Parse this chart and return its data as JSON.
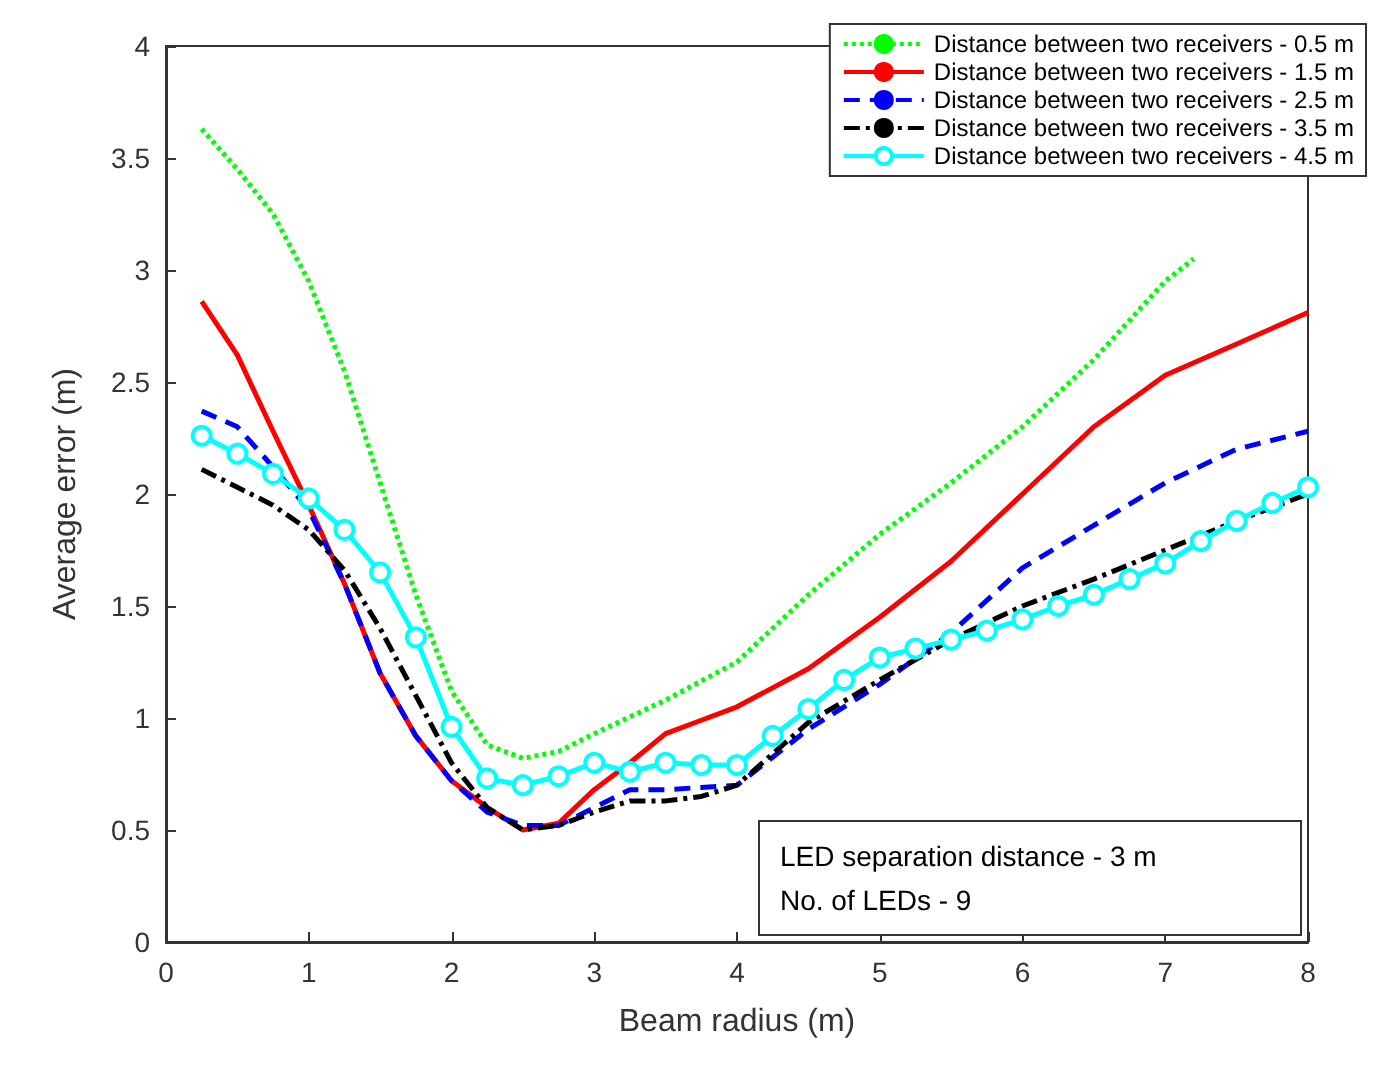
{
  "chart_data": {
    "type": "line",
    "xlabel": "Beam radius (m)",
    "ylabel": "Average error (m)",
    "xlim": [
      0,
      8
    ],
    "xticks": [
      0,
      1,
      2,
      3,
      4,
      5,
      6,
      7,
      8
    ],
    "ylim": [
      0,
      4
    ],
    "yticks": [
      0,
      0.5,
      1,
      1.5,
      2,
      2.5,
      3,
      3.5,
      4
    ],
    "grid": false,
    "legend": "top right",
    "annotations": [
      "LED separation distance - 3 m",
      "No. of LEDs - 9"
    ],
    "series": [
      {
        "name": "Distance between two receivers - 0.5 m",
        "color": "#00ff00",
        "line_style": "dotted",
        "marker": "none",
        "x": [
          0.25,
          0.5,
          0.75,
          1,
          1.25,
          1.5,
          1.75,
          2,
          2.25,
          2.5,
          2.75,
          3,
          3.5,
          4,
          4.5,
          5,
          5.5,
          6,
          6.5,
          7,
          7.2
        ],
        "values": [
          3.63,
          3.45,
          3.25,
          2.95,
          2.55,
          2.05,
          1.55,
          1.12,
          0.88,
          0.82,
          0.85,
          0.93,
          1.08,
          1.25,
          1.55,
          1.82,
          2.05,
          2.3,
          2.6,
          2.95,
          3.05
        ]
      },
      {
        "name": "Distance between two receivers - 1.5 m",
        "color": "#ff0000",
        "line_style": "solid",
        "marker": "none",
        "x": [
          0.25,
          0.5,
          0.75,
          1,
          1.25,
          1.5,
          1.75,
          2,
          2.25,
          2.5,
          2.75,
          3,
          3.25,
          3.5,
          3.75,
          4,
          4.5,
          5,
          5.5,
          6,
          6.5,
          7,
          7.5,
          8
        ],
        "values": [
          2.86,
          2.62,
          2.28,
          1.95,
          1.6,
          1.2,
          0.92,
          0.72,
          0.6,
          0.5,
          0.53,
          0.68,
          0.8,
          0.93,
          0.99,
          1.05,
          1.22,
          1.45,
          1.7,
          2,
          2.3,
          2.53,
          2.67,
          2.81
        ]
      },
      {
        "name": "Distance between two receivers - 2.5 m",
        "color": "#0000ff",
        "line_style": "dashed",
        "marker": "none",
        "x": [
          0.25,
          0.5,
          0.75,
          1,
          1.25,
          1.5,
          1.75,
          2,
          2.25,
          2.5,
          2.75,
          3,
          3.25,
          3.5,
          3.75,
          4,
          4.5,
          5,
          5.5,
          6,
          6.5,
          7,
          7.5,
          8
        ],
        "values": [
          2.37,
          2.3,
          2.12,
          1.93,
          1.6,
          1.2,
          0.92,
          0.72,
          0.58,
          0.52,
          0.52,
          0.6,
          0.68,
          0.68,
          0.69,
          0.7,
          0.95,
          1.15,
          1.38,
          1.67,
          1.86,
          2.05,
          2.2,
          2.28
        ]
      },
      {
        "name": "Distance between two receivers - 3.5 m",
        "color": "#000000",
        "line_style": "dashdot",
        "marker": "none",
        "x": [
          0.25,
          0.5,
          0.75,
          1,
          1.25,
          1.5,
          1.75,
          2,
          2.25,
          2.5,
          2.75,
          3,
          3.25,
          3.5,
          3.75,
          4,
          4.5,
          5,
          5.5,
          6,
          6.5,
          7,
          7.5,
          8
        ],
        "values": [
          2.11,
          2.03,
          1.95,
          1.84,
          1.66,
          1.4,
          1.1,
          0.8,
          0.6,
          0.5,
          0.52,
          0.58,
          0.63,
          0.63,
          0.65,
          0.7,
          0.98,
          1.17,
          1.35,
          1.5,
          1.62,
          1.75,
          1.88,
          2
        ]
      },
      {
        "name": "Distance between two receivers - 4.5 m",
        "color": "#00ffff",
        "line_style": "solid",
        "marker": "circle",
        "x": [
          0.25,
          0.5,
          0.75,
          1,
          1.25,
          1.5,
          1.75,
          2,
          2.25,
          2.5,
          2.75,
          3,
          3.25,
          3.5,
          3.75,
          4,
          4.25,
          4.5,
          4.75,
          5,
          5.25,
          5.5,
          5.75,
          6,
          6.25,
          6.5,
          6.75,
          7,
          7.25,
          7.5,
          7.75,
          8
        ],
        "values": [
          2.26,
          2.18,
          2.09,
          1.98,
          1.84,
          1.65,
          1.36,
          0.96,
          0.73,
          0.7,
          0.74,
          0.8,
          0.76,
          0.8,
          0.79,
          0.79,
          0.92,
          1.04,
          1.17,
          1.27,
          1.31,
          1.35,
          1.39,
          1.44,
          1.5,
          1.55,
          1.62,
          1.69,
          1.79,
          1.88,
          1.96,
          2.03
        ]
      }
    ]
  }
}
